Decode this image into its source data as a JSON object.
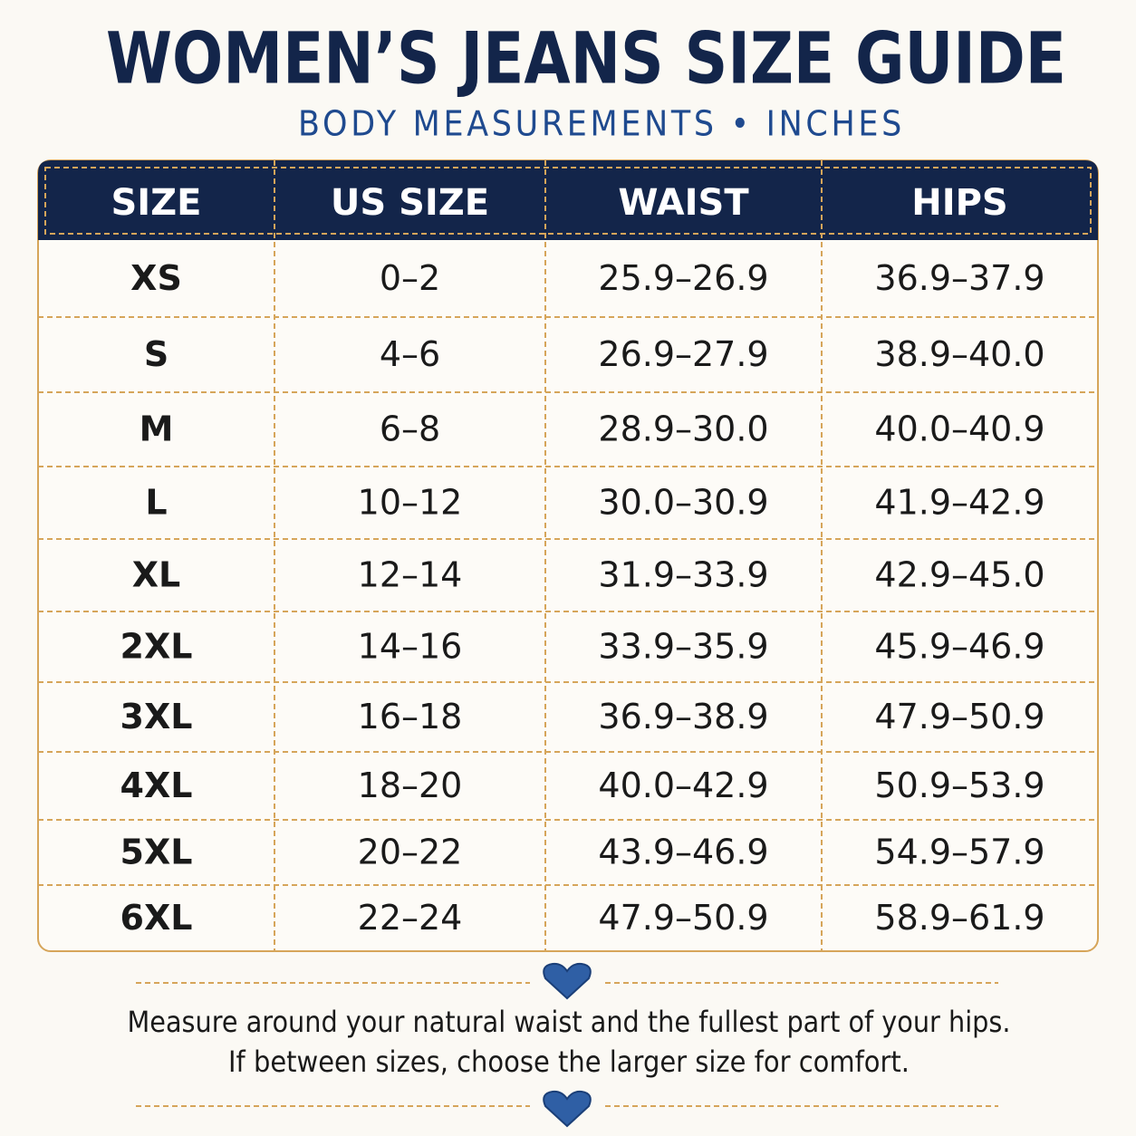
{
  "header": {
    "title": "WOMEN’S JEANS SIZE GUIDE",
    "subtitle": "BODY MEASUREMENTS • INCHES"
  },
  "table": {
    "columns": [
      "SIZE",
      "US SIZE",
      "WAIST",
      "HIPS"
    ],
    "rows": [
      [
        "XS",
        "0–2",
        "25.9–26.9",
        "36.9–37.9"
      ],
      [
        "S",
        "4–6",
        "26.9–27.9",
        "38.9–40.0"
      ],
      [
        "M",
        "6–8",
        "28.9–30.0",
        "40.0–40.9"
      ],
      [
        "L",
        "10–12",
        "30.0–30.9",
        "41.9–42.9"
      ],
      [
        "XL",
        "12–14",
        "31.9–33.9",
        "42.9–45.0"
      ],
      [
        "2XL",
        "14–16",
        "33.9–35.9",
        "45.9–46.9"
      ],
      [
        "3XL",
        "16–18",
        "36.9–38.9",
        "47.9–50.9"
      ],
      [
        "4XL",
        "18–20",
        "40.0–42.9",
        "50.9–53.9"
      ],
      [
        "5XL",
        "20–22",
        "43.9–46.9",
        "54.9–57.9"
      ],
      [
        "6XL",
        "22–24",
        "47.9–50.9",
        "58.9–61.9"
      ]
    ]
  },
  "notes": [
    "Measure around your natural waist and the fullest part of your hips.",
    "If between sizes, choose the larger size for comfort."
  ]
}
